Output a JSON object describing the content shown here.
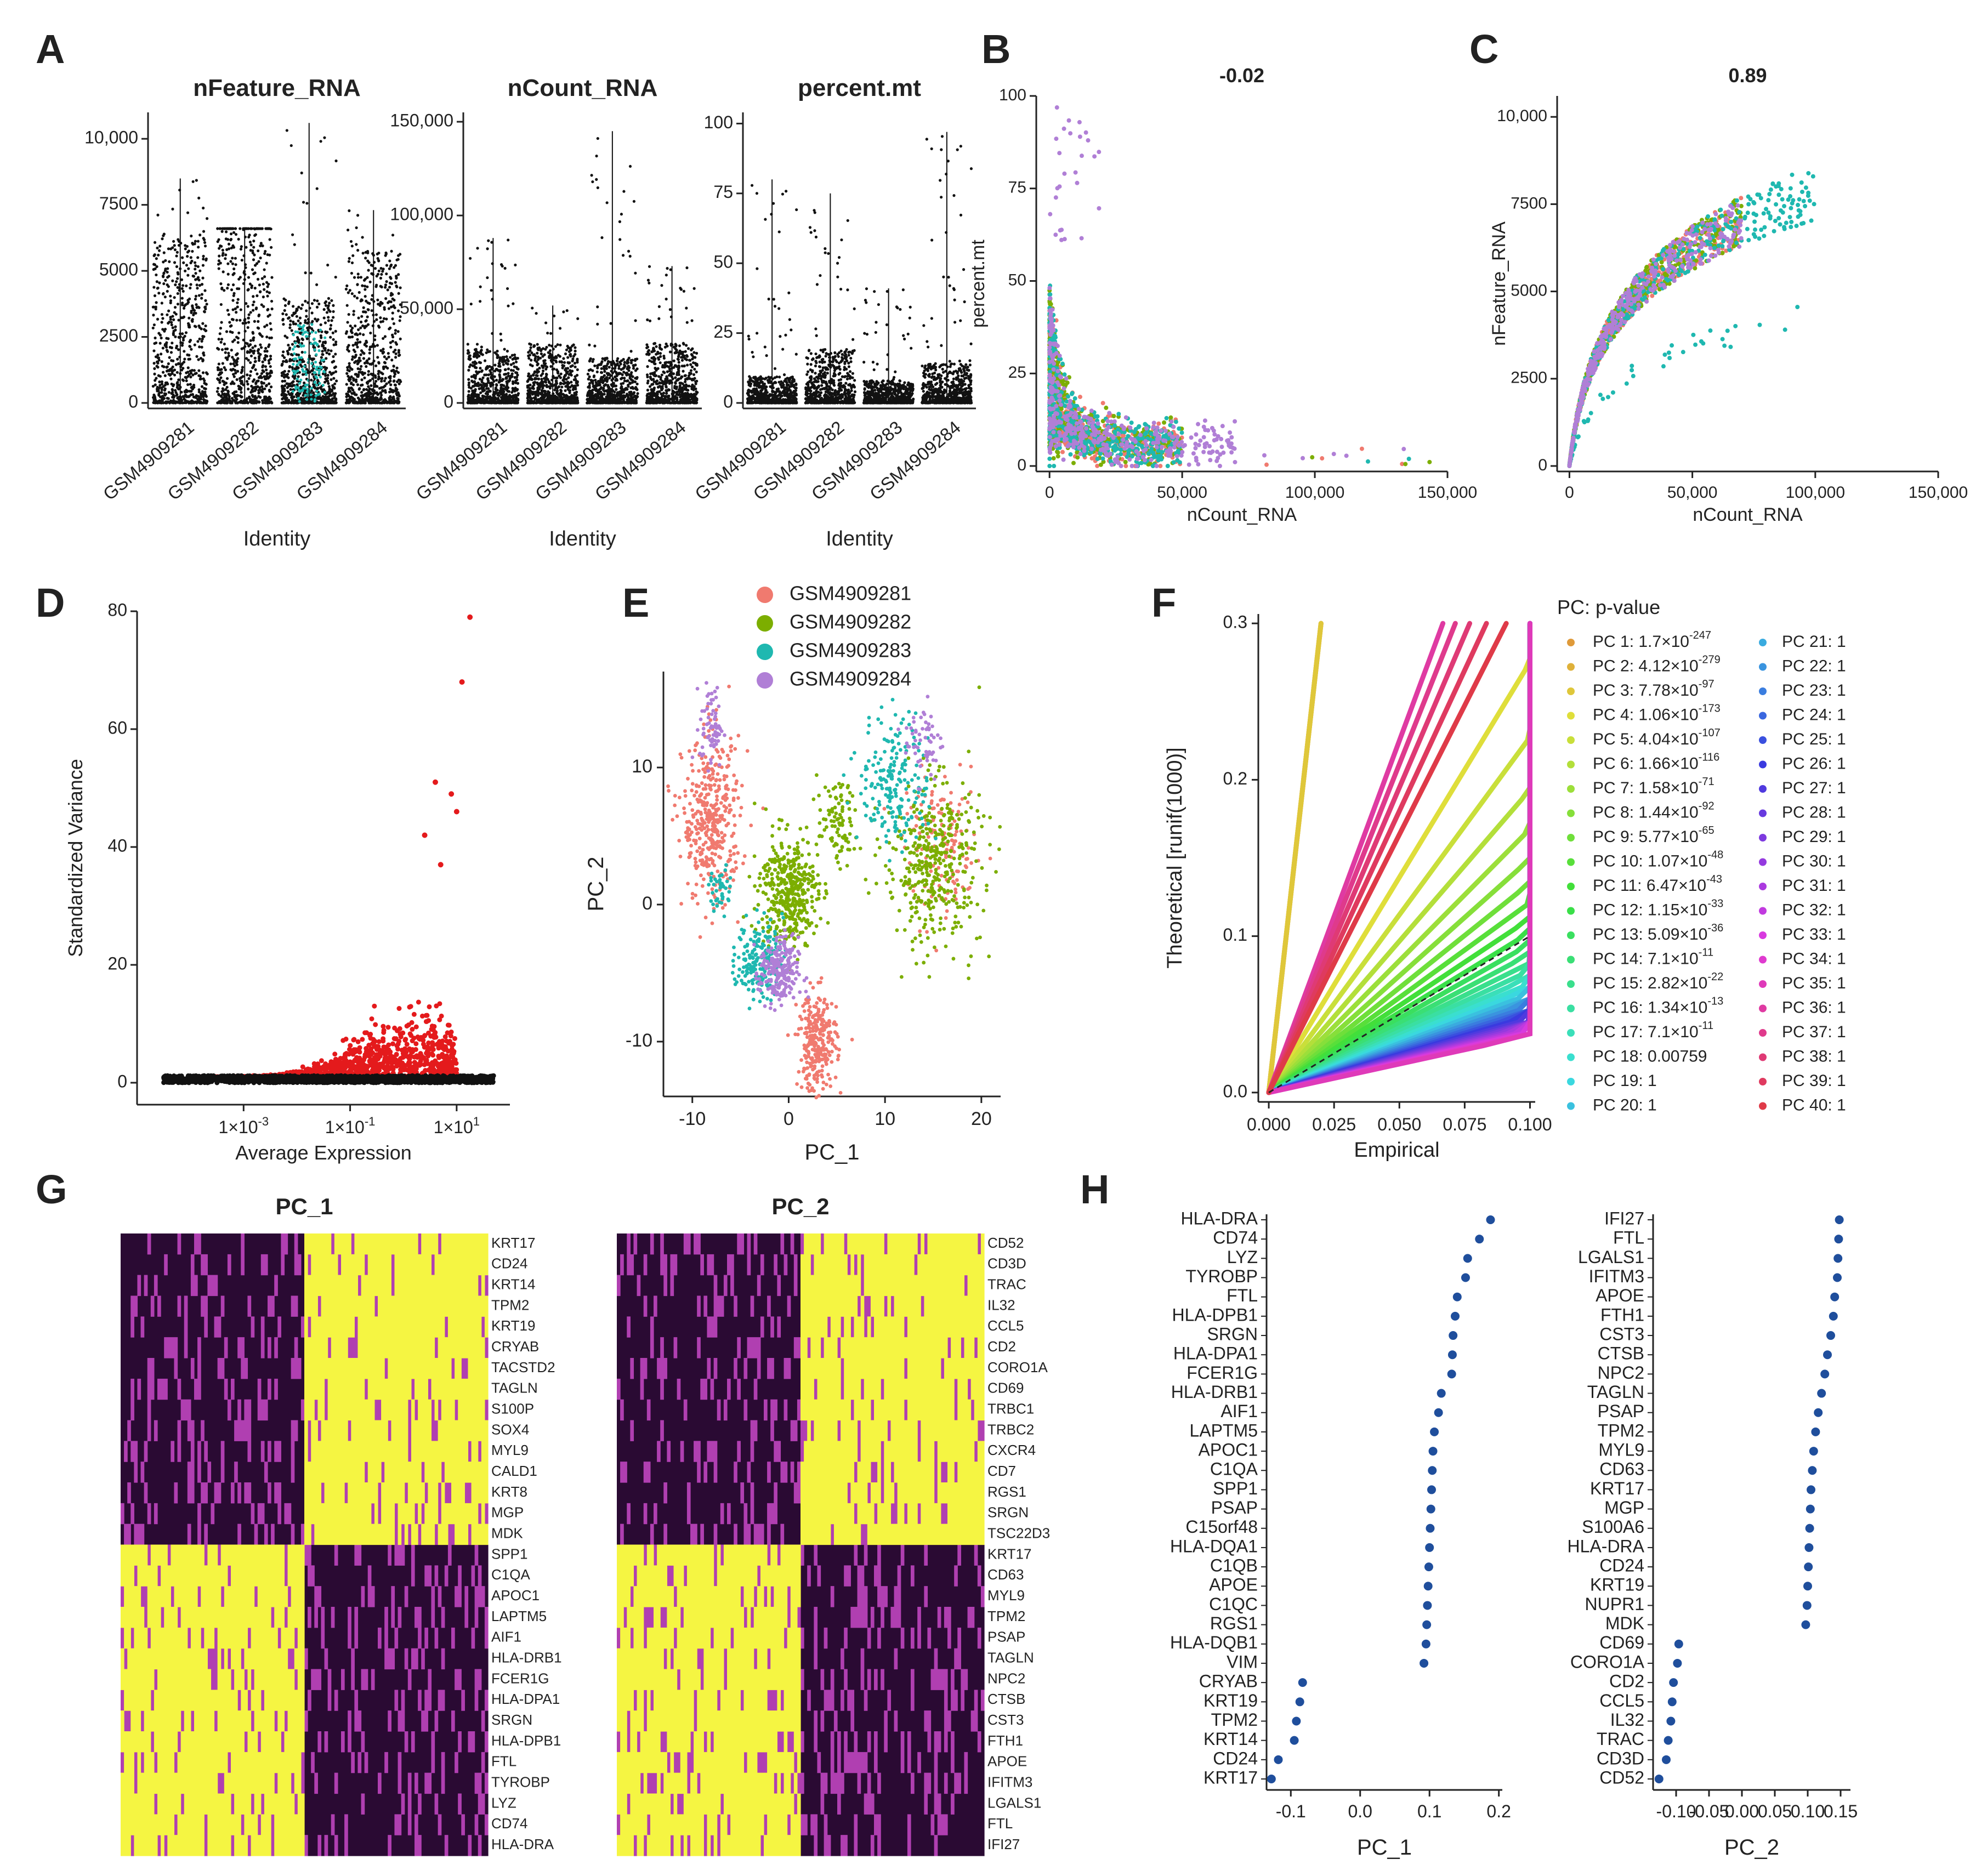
{
  "colors": {
    "s1": "#f07a6f",
    "s2": "#7cae00",
    "s3": "#1fb8b0",
    "s4": "#b07fd6",
    "red": "#e41a1c",
    "dot": "#1f4e9c",
    "heat_low": "#2a0a33",
    "heat_mid": "#b03fb1",
    "heat_high": "#f5f542"
  },
  "panel_labels": [
    "A",
    "B",
    "C",
    "D",
    "E",
    "F",
    "G",
    "H"
  ],
  "violin": {
    "xlabel": "Identity",
    "samples": [
      "GSM4909281",
      "GSM4909282",
      "GSM4909283",
      "GSM4909284"
    ],
    "plots": [
      {
        "title": "nFeature_RNA",
        "ticks": [
          "0",
          "2500",
          "5000",
          "7500",
          "10,000"
        ],
        "tick_values": [
          0,
          2500,
          5000,
          7500,
          10000
        ],
        "ymax": 11000,
        "maxima": [
          8500,
          6600,
          10600,
          7300
        ],
        "bulk": [
          4000,
          5200,
          2500,
          3600
        ]
      },
      {
        "title": "nCount_RNA",
        "ticks": [
          "0",
          "50,000",
          "100,000",
          "150,000"
        ],
        "tick_values": [
          0,
          50000,
          100000,
          150000
        ],
        "ymax": 155000,
        "maxima": [
          88000,
          52000,
          145000,
          73000
        ],
        "bulk": [
          18000,
          20000,
          15000,
          20000
        ]
      },
      {
        "title": "percent.mt",
        "ticks": [
          "0",
          "25",
          "50",
          "75",
          "100"
        ],
        "tick_values": [
          0,
          25,
          50,
          75,
          100
        ],
        "ymax": 104,
        "maxima": [
          80,
          75,
          41,
          97
        ],
        "bulk": [
          6,
          12,
          5,
          9
        ]
      }
    ]
  },
  "chart_data": [
    {
      "panel": "B",
      "type": "scatter",
      "title": "-0.02",
      "xlabel": "nCount_RNA",
      "ylabel": "percent.mt",
      "xlim": [
        -5000,
        150000
      ],
      "ylim": [
        0,
        100
      ],
      "xticks": [
        "0",
        "50,000",
        "100,000",
        "150,000"
      ],
      "xtick_values": [
        0,
        50000,
        100000,
        150000
      ],
      "yticks": [
        "0",
        "25",
        "50",
        "75",
        "100"
      ],
      "ytick_values": [
        0,
        25,
        50,
        75,
        100
      ]
    },
    {
      "panel": "C",
      "type": "scatter",
      "title": "0.89",
      "xlabel": "nCount_RNA",
      "ylabel": "nFeature_RNA",
      "xlim": [
        -5000,
        150000
      ],
      "ylim": [
        0,
        10600
      ],
      "xticks": [
        "0",
        "50,000",
        "100,000",
        "150,000"
      ],
      "xtick_values": [
        0,
        50000,
        100000,
        150000
      ],
      "yticks": [
        "0",
        "2500",
        "5000",
        "7500",
        "10,000"
      ],
      "ytick_values": [
        0,
        2500,
        5000,
        7500,
        10000
      ]
    },
    {
      "panel": "D",
      "type": "scatter",
      "xlabel": "Average Expression",
      "ylabel": "Standardized Variance",
      "xlim": [
        -5,
        2
      ],
      "ylim": [
        0,
        80
      ],
      "yticks": [
        "0",
        "20",
        "40",
        "60",
        "80"
      ],
      "ytick_values": [
        0,
        20,
        40,
        60,
        80
      ],
      "xticks_base": [
        "1×10",
        "1×10",
        "1×10"
      ],
      "xticks_exp": [
        "-3",
        "-1",
        "1"
      ],
      "xtick_values": [
        -3,
        -1,
        1
      ],
      "top_points": [
        {
          "x": 1.25,
          "y": 79
        },
        {
          "x": 1.1,
          "y": 68
        },
        {
          "x": 0.6,
          "y": 51
        },
        {
          "x": 0.9,
          "y": 49
        },
        {
          "x": 1.0,
          "y": 46
        },
        {
          "x": 0.4,
          "y": 42
        },
        {
          "x": 0.7,
          "y": 37
        }
      ]
    },
    {
      "panel": "E",
      "type": "scatter",
      "xlabel": "PC_1",
      "ylabel": "PC_2",
      "xlim": [
        -13,
        22
      ],
      "ylim": [
        -14,
        17
      ],
      "xticks": [
        "-10",
        "0",
        "10",
        "20"
      ],
      "xtick_values": [
        -10,
        0,
        10,
        20
      ],
      "yticks": [
        "-10",
        "0",
        "10"
      ],
      "ytick_values": [
        -10,
        0,
        10
      ],
      "legend": [
        "GSM4909281",
        "GSM4909282",
        "GSM4909283",
        "GSM4909284"
      ]
    },
    {
      "panel": "F",
      "type": "line",
      "xlabel": "Empirical",
      "ylabel": "Theoretical [runif(1000)]",
      "xlim": [
        -0.004,
        0.102
      ],
      "ylim": [
        -0.006,
        0.306
      ],
      "xticks": [
        "0.000",
        "0.025",
        "0.050",
        "0.075",
        "0.100"
      ],
      "xtick_values": [
        0,
        0.025,
        0.05,
        0.075,
        0.1
      ],
      "yticks": [
        "0.0",
        "0.1",
        "0.2",
        "0.3"
      ],
      "ytick_values": [
        0,
        0.1,
        0.2,
        0.3
      ],
      "legend_title": "PC: p-value",
      "legend_col1": [
        {
          "label": "PC 1: 1.7×10",
          "exp": "-247"
        },
        {
          "label": "PC 2: 4.12×10",
          "exp": "-279"
        },
        {
          "label": "PC 3: 7.78×10",
          "exp": "-97"
        },
        {
          "label": "PC 4: 1.06×10",
          "exp": "-173"
        },
        {
          "label": "PC 5: 4.04×10",
          "exp": "-107"
        },
        {
          "label": "PC 6: 1.66×10",
          "exp": "-116"
        },
        {
          "label": "PC 7: 1.58×10",
          "exp": "-71"
        },
        {
          "label": "PC 8: 1.44×10",
          "exp": "-92"
        },
        {
          "label": "PC 9: 5.77×10",
          "exp": "-65"
        },
        {
          "label": "PC 10: 1.07×10",
          "exp": "-48"
        },
        {
          "label": "PC 11: 6.47×10",
          "exp": "-43"
        },
        {
          "label": "PC 12: 1.15×10",
          "exp": "-33"
        },
        {
          "label": "PC 13: 5.09×10",
          "exp": "-36"
        },
        {
          "label": "PC 14: 7.1×10",
          "exp": "-11"
        },
        {
          "label": "PC 15: 2.82×10",
          "exp": "-22"
        },
        {
          "label": "PC 16: 1.34×10",
          "exp": "-13"
        },
        {
          "label": "PC 17: 7.1×10",
          "exp": "-11"
        },
        {
          "label": "PC 18: 0.00759",
          "exp": ""
        },
        {
          "label": "PC 19: 1",
          "exp": ""
        },
        {
          "label": "PC 20: 1",
          "exp": ""
        }
      ],
      "legend_col2": [
        "PC 21: 1",
        "PC 22: 1",
        "PC 23: 1",
        "PC 24: 1",
        "PC 25: 1",
        "PC 26: 1",
        "PC 27: 1",
        "PC 28: 1",
        "PC 29: 1",
        "PC 30: 1",
        "PC 31: 1",
        "PC 32: 1",
        "PC 33: 1",
        "PC 34: 1",
        "PC 35: 1",
        "PC 36: 1",
        "PC 37: 1",
        "PC 38: 1",
        "PC 39: 1",
        "PC 40: 1"
      ]
    },
    {
      "panel": "G",
      "type": "heatmap",
      "heatmaps": [
        {
          "title": "PC_1",
          "genes": [
            "KRT17",
            "CD24",
            "KRT14",
            "TPM2",
            "KRT19",
            "CRYAB",
            "TACSTD2",
            "TAGLN",
            "S100P",
            "SOX4",
            "MYL9",
            "CALD1",
            "KRT8",
            "MGP",
            "MDK",
            "SPP1",
            "C1QA",
            "APOC1",
            "LAPTM5",
            "AIF1",
            "HLA-DRB1",
            "FCER1G",
            "HLA-DPA1",
            "SRGN",
            "HLA-DPB1",
            "FTL",
            "TYROBP",
            "LYZ",
            "CD74",
            "HLA-DRA"
          ],
          "split": 15
        },
        {
          "title": "PC_2",
          "genes": [
            "CD52",
            "CD3D",
            "TRAC",
            "IL32",
            "CCL5",
            "CD2",
            "CORO1A",
            "CD69",
            "TRBC1",
            "TRBC2",
            "CXCR4",
            "CD7",
            "RGS1",
            "SRGN",
            "TSC22D3",
            "KRT17",
            "CD63",
            "MYL9",
            "TPM2",
            "PSAP",
            "TAGLN",
            "NPC2",
            "CTSB",
            "CST3",
            "FTH1",
            "APOE",
            "IFITM3",
            "LGALS1",
            "FTL",
            "IFI27"
          ],
          "split": 15
        }
      ]
    },
    {
      "panel": "H",
      "type": "scatter",
      "dotplots": [
        {
          "xlabel": "PC_1",
          "xlim": [
            -0.135,
            0.205
          ],
          "xticks": [
            "-0.1",
            "0.0",
            "0.1",
            "0.2"
          ],
          "xtick_values": [
            -0.1,
            0,
            0.1,
            0.2
          ],
          "genes": [
            "HLA-DRA",
            "CD74",
            "LYZ",
            "TYROBP",
            "FTL",
            "HLA-DPB1",
            "SRGN",
            "HLA-DPA1",
            "FCER1G",
            "HLA-DRB1",
            "AIF1",
            "LAPTM5",
            "APOC1",
            "C1QA",
            "SPP1",
            "PSAP",
            "C15orf48",
            "HLA-DQA1",
            "C1QB",
            "APOE",
            "C1QC",
            "RGS1",
            "HLA-DQB1",
            "VIM",
            "CRYAB",
            "KRT19",
            "TPM2",
            "KRT14",
            "CD24",
            "KRT17"
          ],
          "values": [
            0.188,
            0.172,
            0.155,
            0.152,
            0.14,
            0.137,
            0.134,
            0.133,
            0.132,
            0.117,
            0.113,
            0.107,
            0.105,
            0.104,
            0.103,
            0.102,
            0.101,
            0.1,
            0.099,
            0.098,
            0.097,
            0.096,
            0.095,
            0.092,
            -0.083,
            -0.087,
            -0.092,
            -0.095,
            -0.118,
            -0.128
          ]
        },
        {
          "xlabel": "PC_2",
          "xlim": [
            -0.135,
            0.165
          ],
          "xticks": [
            "-0.10",
            "-0.05",
            "0.00",
            "0.05",
            "0.10",
            "0.15"
          ],
          "xtick_values": [
            -0.1,
            -0.05,
            0,
            0.05,
            0.1,
            0.15
          ],
          "genes": [
            "IFI27",
            "FTL",
            "LGALS1",
            "IFITM3",
            "APOE",
            "FTH1",
            "CST3",
            "CTSB",
            "NPC2",
            "TAGLN",
            "PSAP",
            "TPM2",
            "MYL9",
            "CD63",
            "KRT17",
            "MGP",
            "S100A6",
            "HLA-DRA",
            "CD24",
            "KRT19",
            "NUPR1",
            "MDK",
            "CD69",
            "CORO1A",
            "CD2",
            "CCL5",
            "IL32",
            "TRAC",
            "CD3D",
            "CD52"
          ],
          "values": [
            0.148,
            0.147,
            0.146,
            0.145,
            0.141,
            0.139,
            0.135,
            0.13,
            0.126,
            0.121,
            0.116,
            0.112,
            0.109,
            0.107,
            0.105,
            0.104,
            0.103,
            0.102,
            0.101,
            0.1,
            0.099,
            0.097,
            -0.096,
            -0.098,
            -0.104,
            -0.106,
            -0.108,
            -0.112,
            -0.115,
            -0.126
          ]
        }
      ]
    }
  ]
}
